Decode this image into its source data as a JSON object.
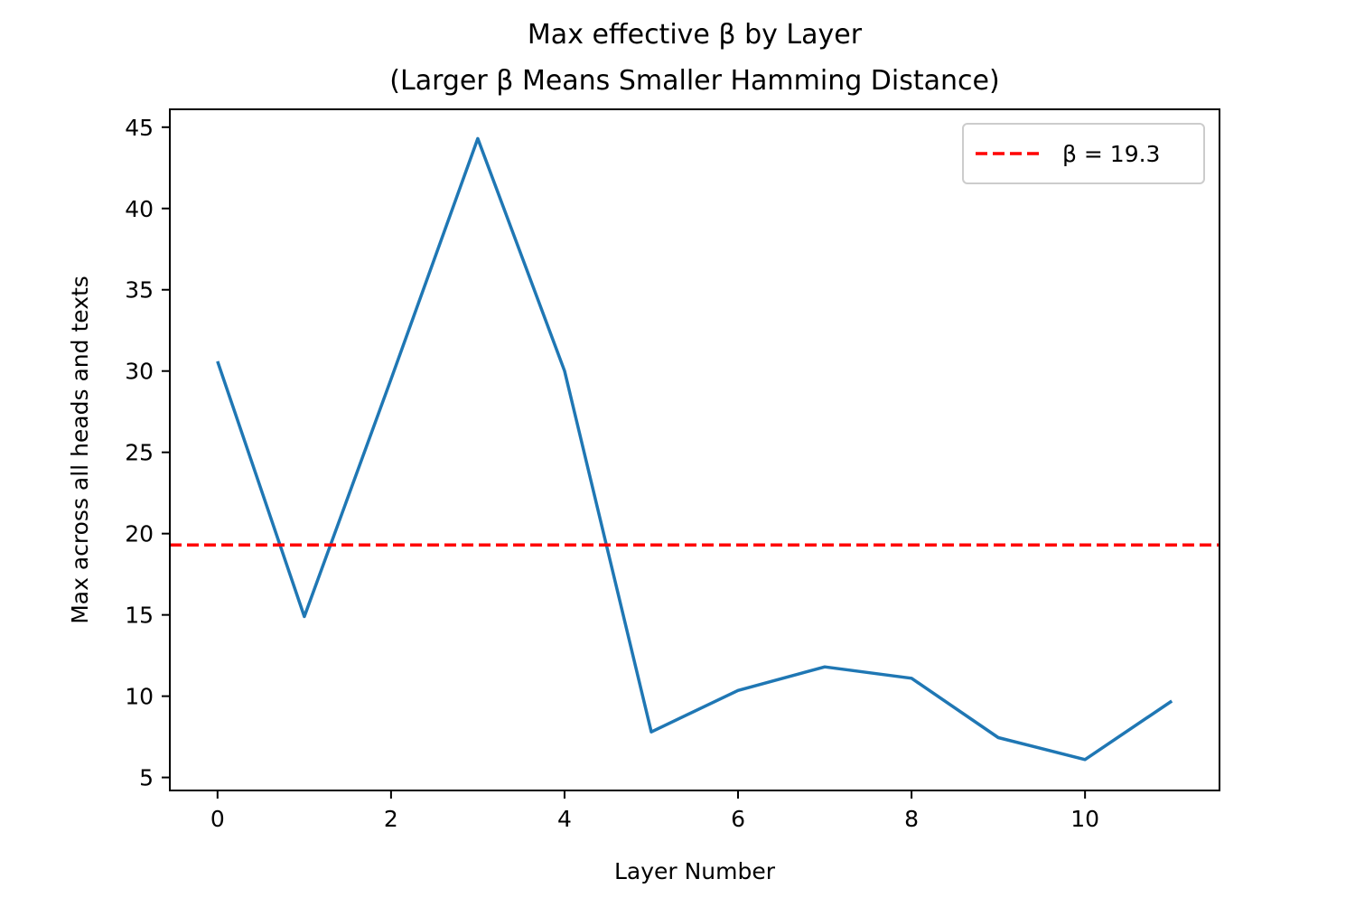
{
  "chart_data": {
    "type": "line",
    "title": "Max effective β by Layer",
    "subtitle": "(Larger β Means Smaller Hamming Distance)",
    "xlabel": "Layer Number",
    "ylabel": "Max across all heads and texts",
    "x": [
      0,
      1,
      2,
      3,
      4,
      5,
      6,
      7,
      8,
      9,
      10,
      11
    ],
    "series": [
      {
        "values": [
          30.6,
          14.9,
          29.5,
          44.3,
          30.0,
          7.8,
          10.35,
          11.8,
          11.1,
          7.45,
          6.1,
          9.7
        ],
        "color": "#1f77b4"
      }
    ],
    "hline": {
      "value": 19.3,
      "color": "#ff0000",
      "style": "dashed",
      "legend_label": "β = 19.3"
    },
    "xticks": [
      "0",
      "2",
      "4",
      "6",
      "8",
      "10"
    ],
    "yticks": [
      "5",
      "10",
      "15",
      "20",
      "25",
      "30",
      "35",
      "40",
      "45"
    ],
    "xlim": [
      -0.55,
      11.55
    ],
    "ylim": [
      4.2,
      46.1
    ],
    "grid": false,
    "legend_position": "upper right"
  }
}
